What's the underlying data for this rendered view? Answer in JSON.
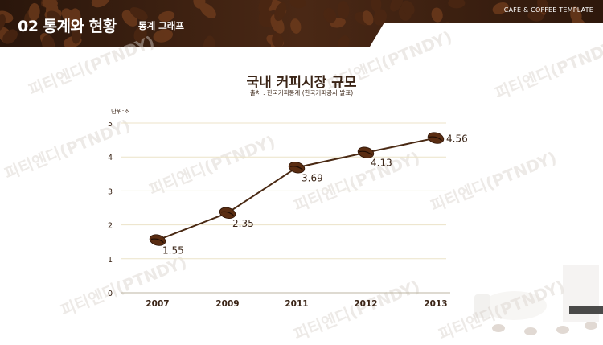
{
  "header": {
    "section_title": "02 통계와 현황",
    "section_subtitle": "통계 그래프",
    "template_label": "CAFÉ & COFFEE TEMPLATE"
  },
  "watermark_text": "피티엔디(PTNDY)",
  "colors": {
    "line": "#4a2a14",
    "bean": "#5a2d12",
    "text": "#3a2416",
    "grid": "#ece3c8",
    "header_dark": "#3b2212"
  },
  "chart_data": {
    "type": "line",
    "title": "국내 커피시장 규모",
    "source_note": "출처 : 한국커피통계 (한국커피공사 발표)",
    "ylabel": "단위:조",
    "xlabel": "",
    "categories": [
      "2007",
      "2009",
      "2011",
      "2012",
      "2013"
    ],
    "series": [
      {
        "values": [
          1.55,
          2.35,
          3.69,
          4.13,
          4.56
        ],
        "value_labels": [
          "1.55",
          "2.35",
          "3.69",
          "4.13",
          "4.56"
        ]
      }
    ],
    "ylim": [
      0,
      5
    ],
    "yticks": [
      "0",
      "1",
      "2",
      "3",
      "4",
      "5"
    ],
    "grid": true,
    "marker": "coffee-bean"
  }
}
